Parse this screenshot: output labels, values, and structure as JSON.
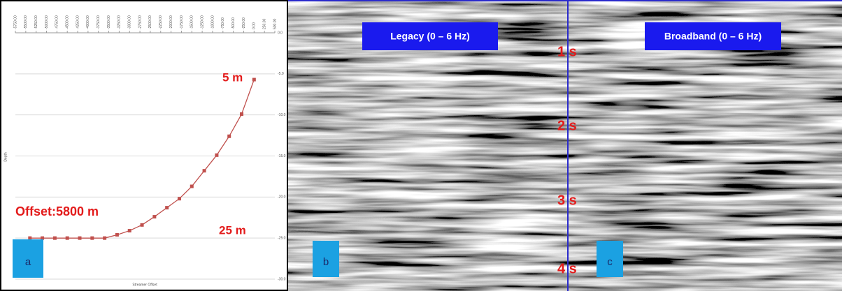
{
  "chart_data": {
    "type": "line",
    "x_label": "Streamer Offset",
    "y_label": "Depth",
    "x": [
      -5400,
      -5100,
      -4800,
      -4500,
      -4200,
      -3900,
      -3600,
      -3300,
      -3000,
      -2700,
      -2400,
      -2100,
      -1800,
      -1500,
      -1200,
      -900,
      -600,
      -300,
      0
    ],
    "values": [
      -25,
      -25,
      -25,
      -25,
      -25,
      -25,
      -25,
      -24.6,
      -24.1,
      -23.4,
      -22.4,
      -21.3,
      -20.2,
      -18.7,
      -16.8,
      -14.9,
      -12.6,
      -9.9,
      -5.7
    ],
    "color": "#c0504d",
    "xlim": [
      -5750,
      500
    ],
    "xticks": [
      {
        "value": -5750,
        "label": "-5750.00"
      },
      {
        "value": -5500,
        "label": "-5500.00"
      },
      {
        "value": -5250,
        "label": "-5250.00"
      },
      {
        "value": -5000,
        "label": "-5000.00"
      },
      {
        "value": -4750,
        "label": "-4750.00"
      },
      {
        "value": -4500,
        "label": "-4500.00"
      },
      {
        "value": -4250,
        "label": "-4250.00"
      },
      {
        "value": -4000,
        "label": "-4000.00"
      },
      {
        "value": -3750,
        "label": "-3750.00"
      },
      {
        "value": -3500,
        "label": "-3500.00"
      },
      {
        "value": -3250,
        "label": "-3250.00"
      },
      {
        "value": -3000,
        "label": "-3000.00"
      },
      {
        "value": -2750,
        "label": "-2750.00"
      },
      {
        "value": -2500,
        "label": "-2500.00"
      },
      {
        "value": -2250,
        "label": "-2250.00"
      },
      {
        "value": -2000,
        "label": "-2000.00"
      },
      {
        "value": -1750,
        "label": "-1750.00"
      },
      {
        "value": -1500,
        "label": "-1500.00"
      },
      {
        "value": -1250,
        "label": "-1250.00"
      },
      {
        "value": -1000,
        "label": "-1000.00"
      },
      {
        "value": -750,
        "label": "-750.00"
      },
      {
        "value": -500,
        "label": "-500.00"
      },
      {
        "value": -250,
        "label": "-250.00"
      },
      {
        "value": 0,
        "label": "0.00"
      },
      {
        "value": 250,
        "label": "250.00"
      },
      {
        "value": 500,
        "label": "500.00"
      }
    ],
    "ylim": [
      -30,
      0
    ],
    "yticks": [
      {
        "value": 0,
        "label": "0.0"
      },
      {
        "value": -5,
        "label": "-5.0"
      },
      {
        "value": -10,
        "label": "-10.0"
      },
      {
        "value": -15,
        "label": "-15.0"
      },
      {
        "value": -20,
        "label": "-20.0"
      },
      {
        "value": -25,
        "label": "-25.0"
      },
      {
        "value": -30,
        "label": "-30.0"
      }
    ],
    "grid": true,
    "annotations": [
      "5 m",
      "25 m",
      "Offset:5800 m"
    ],
    "panel_label": "a"
  },
  "panels": [
    {
      "label": "b",
      "title": "Legacy (0 – 6 Hz)"
    },
    {
      "label": "c",
      "title": "Broadband (0 – 6 Hz)"
    }
  ],
  "time_labels": [
    "1 s",
    "2 s",
    "3 s",
    "4 s"
  ]
}
